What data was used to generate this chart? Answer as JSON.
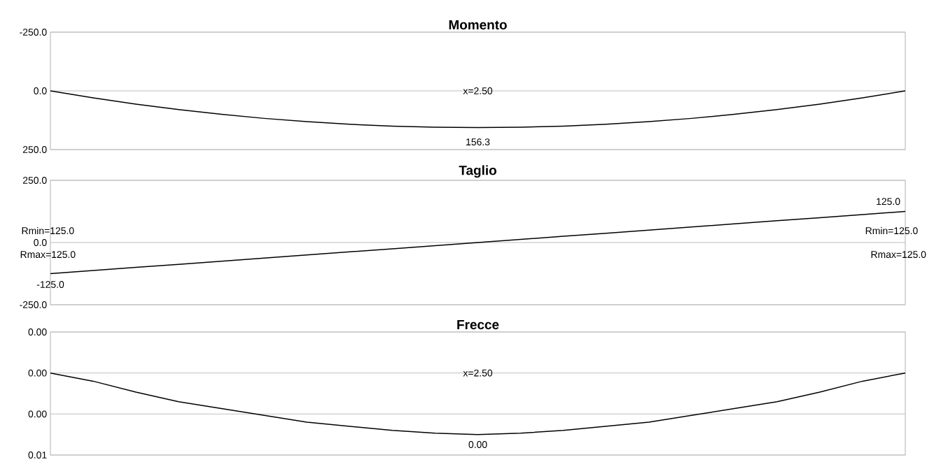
{
  "chart_data": [
    {
      "type": "line",
      "title": "Momento",
      "color": "#000000",
      "ylim": [
        250,
        -250
      ],
      "yticks": [
        {
          "value": -250,
          "label": "-250.0"
        },
        {
          "value": 0,
          "label": "0.0"
        },
        {
          "value": 250,
          "label": "250.0"
        }
      ],
      "grid": "y",
      "tick_labels": "y",
      "categories": [
        null,
        null,
        null,
        null,
        null,
        null,
        null,
        null,
        null,
        null,
        null,
        null,
        null,
        null,
        null,
        null,
        null,
        null,
        null,
        null,
        null
      ],
      "values": [
        0,
        29.7,
        56.3,
        79.7,
        100,
        117.2,
        131.3,
        142.2,
        150,
        154.7,
        156.3,
        154.7,
        150,
        142.2,
        131.3,
        117.2,
        100,
        79.7,
        56.3,
        29.7,
        0
      ],
      "annotations": [
        "x=2.50",
        "156.3"
      ]
    },
    {
      "type": "line",
      "title": "Taglio",
      "color": "#000000",
      "ylim": [
        -250,
        250
      ],
      "yticks": [
        {
          "value": -250,
          "label": "-250.0"
        },
        {
          "value": 0,
          "label": "0.0"
        },
        {
          "value": 250,
          "label": "250.0"
        }
      ],
      "grid": "y",
      "tick_labels": "y",
      "categories": [
        null,
        null,
        null,
        null,
        null,
        null,
        null,
        null,
        null,
        null,
        null,
        null,
        null,
        null,
        null,
        null,
        null,
        null,
        null,
        null,
        null
      ],
      "values": [
        -125,
        -112.5,
        -100,
        -87.5,
        -75,
        -62.5,
        -50,
        -37.5,
        -25,
        -12.5,
        0,
        12.5,
        25,
        37.5,
        50,
        62.5,
        75,
        87.5,
        100,
        112.5,
        125
      ],
      "annotations": [
        "Rmin=125.0",
        "Rmax=125.0",
        "-125.0",
        "125.0",
        "Rmin=125.0",
        "Rmax=125.0"
      ]
    },
    {
      "type": "line",
      "title": "Frecce",
      "color": "#000000",
      "ylim": [
        0.006,
        -0.003
      ],
      "yticks": [
        {
          "value": -0.003,
          "label": "0.00"
        },
        {
          "value": 0,
          "label": "0.00"
        },
        {
          "value": 0.003,
          "label": "0.00"
        },
        {
          "value": 0.006,
          "label": "0.01"
        }
      ],
      "grid": "y",
      "tick_labels": "y",
      "categories": [
        null,
        null,
        null,
        null,
        null,
        null,
        null,
        null,
        null,
        null,
        null,
        null,
        null,
        null,
        null,
        null,
        null,
        null,
        null,
        null,
        null
      ],
      "values": [
        0,
        0.0006,
        0.0014,
        0.0021,
        0.0026,
        0.0031,
        0.0036,
        0.0039,
        0.0042,
        0.0044,
        0.0045,
        0.0044,
        0.0042,
        0.0039,
        0.0036,
        0.0031,
        0.0026,
        0.0021,
        0.0014,
        0.0006,
        0
      ],
      "annotations": [
        "x=2.50",
        "0.00"
      ]
    }
  ]
}
